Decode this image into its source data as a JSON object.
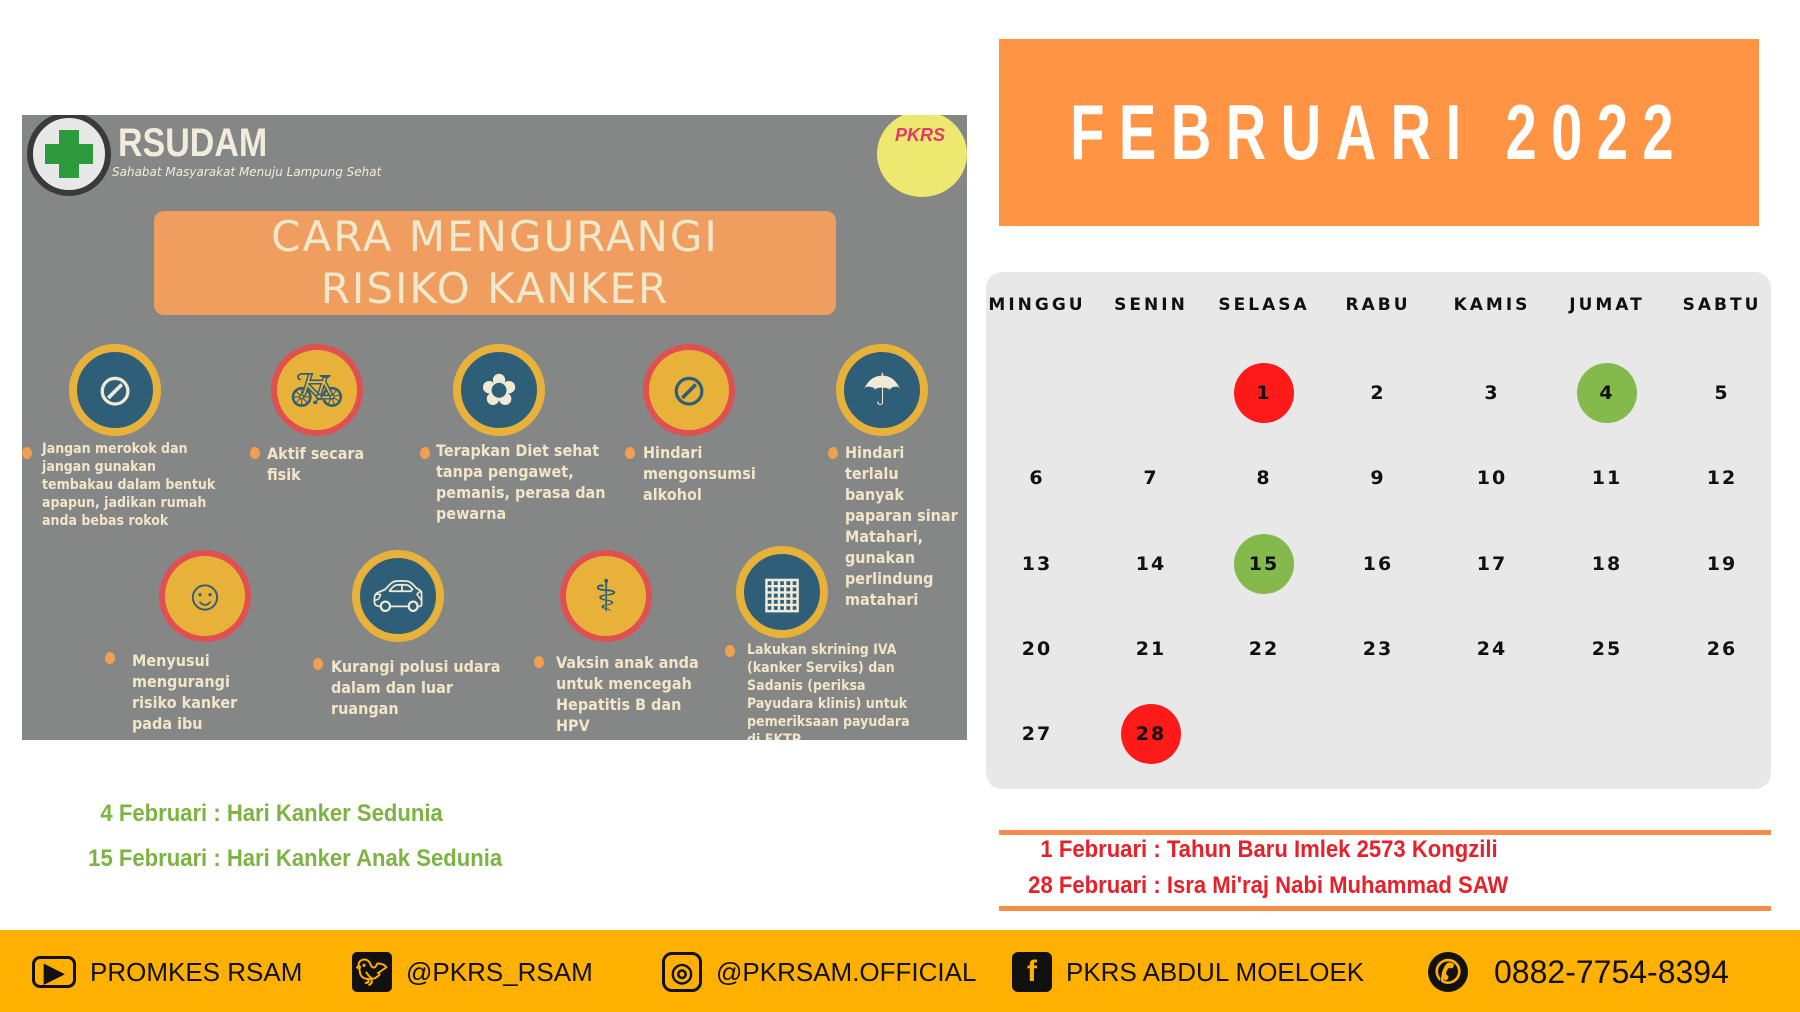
{
  "infographic": {
    "brand": "RSUDAM",
    "tagline": "Sahabat Masyarakat Menuju Lampung Sehat",
    "badge": "PKRS",
    "title_line1": "CARA MENGURANGI",
    "title_line2": "RISIKO KANKER",
    "tips": [
      {
        "icon": "no-smoking-icon",
        "text": "Jangan merokok dan jangan gunakan tembakau dalam bentuk apapun, jadikan rumah anda bebas rokok"
      },
      {
        "icon": "bicycle-icon",
        "text": "Aktif secara fisik"
      },
      {
        "icon": "healthy-diet-icon",
        "text": "Terapkan Diet sehat tanpa pengawet, pemanis, perasa dan pewarna"
      },
      {
        "icon": "no-alcohol-icon",
        "text": "Hindari mengonsumsi alkohol"
      },
      {
        "icon": "umbrella-icon",
        "text": "Hindari terlalu banyak paparan sinar Matahari, gunakan perlindung matahari"
      },
      {
        "icon": "breastfeeding-icon",
        "text": "Menyusui mengurangi risiko kanker pada ibu"
      },
      {
        "icon": "car-pollution-icon",
        "text": "Kurangi polusi udara dalam dan luar ruangan"
      },
      {
        "icon": "vaccine-icon",
        "text": "Vaksin anak anda untuk mencegah Hepatitis B dan HPV"
      },
      {
        "icon": "calendar-ribbon-icon",
        "text": "Lakukan skrining IVA (kanker Serviks) dan Sadanis (periksa Payudara klinis) untuk pemeriksaan payudara di FKTP"
      }
    ]
  },
  "calendar": {
    "title": "FEBRUARI 2022",
    "weekdays": [
      "MINGGU",
      "SENIN",
      "SELASA",
      "RABU",
      "KAMIS",
      "JUMAT",
      "SABTU"
    ],
    "first_weekday_index": 2,
    "days_in_month": 28,
    "highlights": {
      "1": "#ff1a1a",
      "4": "#84b94b",
      "15": "#84b94b",
      "28": "#ff1a1a"
    }
  },
  "green_events": [
    {
      "date": "4 Februari",
      "name": ": Hari Kanker Sedunia"
    },
    {
      "date": "15 Februari",
      "name": ": Hari Kanker Anak Sedunia"
    }
  ],
  "red_events": [
    {
      "date": "1 Februari",
      "name": ": Tahun Baru Imlek 2573 Kongzili"
    },
    {
      "date": "28 Februari",
      "name": ": Isra Mi'raj Nabi Muhammad SAW"
    }
  ],
  "footer": [
    {
      "icon": "youtube-icon",
      "label": "PROMKES RSAM"
    },
    {
      "icon": "twitter-icon",
      "label": "@PKRS_RSAM"
    },
    {
      "icon": "instagram-icon",
      "label": "@PKRSAM.OFFICIAL"
    },
    {
      "icon": "facebook-icon",
      "label": "PKRS ABDUL MOELOEK"
    },
    {
      "icon": "whatsapp-icon",
      "label": "0882-7754-8394"
    }
  ],
  "colors": {
    "header": "#ff9544",
    "footer": "#ffb000",
    "green": "#7cb342",
    "red": "#e8202a"
  }
}
